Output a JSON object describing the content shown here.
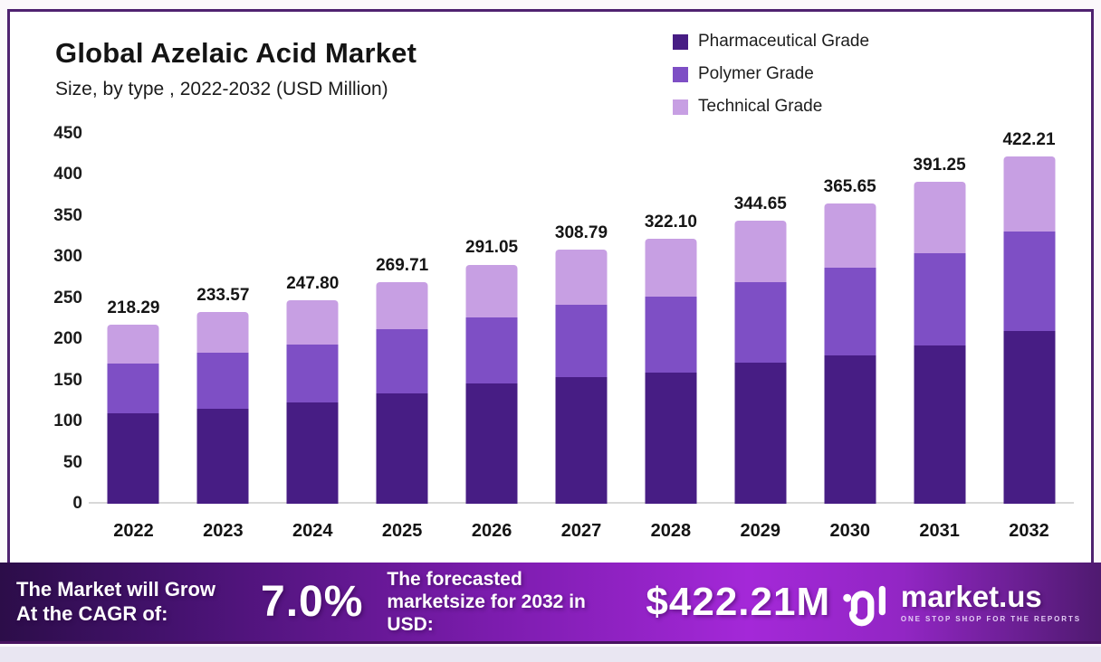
{
  "card": {
    "title": "Global Azelaic Acid Market",
    "subtitle": "Size, by type , 2022-2032 (USD Million)"
  },
  "legend": [
    {
      "label": "Pharmaceutical Grade",
      "color": "#471d84"
    },
    {
      "label": "Polymer Grade",
      "color": "#7e4fc5"
    },
    {
      "label": "Technical Grade",
      "color": "#c79fe3"
    }
  ],
  "chart_data": {
    "type": "bar",
    "stacked": true,
    "title": "Global Azelaic Acid Market Size, by type, 2022-2032 (USD Million)",
    "categories": [
      "2022",
      "2023",
      "2024",
      "2025",
      "2026",
      "2027",
      "2028",
      "2029",
      "2030",
      "2031",
      "2032"
    ],
    "totals": [
      218.29,
      233.57,
      247.8,
      269.71,
      291.05,
      308.79,
      322.1,
      344.65,
      365.65,
      391.25,
      422.21
    ],
    "total_labels": [
      "218.29",
      "233.57",
      "247.80",
      "269.71",
      "291.05",
      "308.79",
      "322.10",
      "344.65",
      "365.65",
      "391.25",
      "422.21"
    ],
    "series": [
      {
        "name": "Pharmaceutical Grade",
        "color": "#471d84",
        "values": [
          110.0,
          115.0,
          123.0,
          134.0,
          146.0,
          154.0,
          160.0,
          172.0,
          180.0,
          193.0,
          210.0
        ]
      },
      {
        "name": "Polymer Grade",
        "color": "#7e4fc5",
        "values": [
          60.5,
          68.7,
          70.8,
          78.7,
          80.3,
          88.0,
          91.9,
          97.7,
          106.7,
          112.1,
          120.7
        ]
      },
      {
        "name": "Technical Grade",
        "color": "#c79fe3",
        "values": [
          47.79,
          49.87,
          54.0,
          57.01,
          64.75,
          66.79,
          70.2,
          74.95,
          78.95,
          86.15,
          91.51
        ]
      }
    ],
    "xlabel": "",
    "ylabel": "",
    "ylim": [
      0,
      450
    ],
    "yticks": [
      450,
      400,
      350,
      300,
      250,
      200,
      150,
      100,
      50,
      0
    ],
    "grid": false,
    "legend_position": "top-right"
  },
  "banner": {
    "left_line1": "The Market will Grow",
    "left_line2": "At the CAGR of:",
    "cagr": "7.0%",
    "mid_line1": "The forecasted",
    "mid_line2": "marketsize for 2032 in",
    "mid_line3": "USD:",
    "forecast_value": "$422.21M",
    "brand": "market.us",
    "tagline": "ONE STOP SHOP FOR THE REPORTS"
  }
}
